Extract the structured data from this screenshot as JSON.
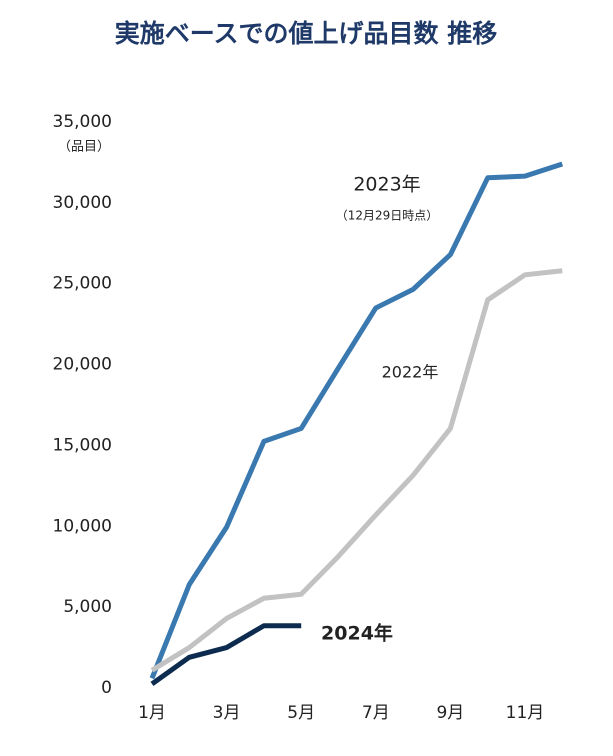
{
  "chart_data": {
    "type": "line",
    "title": "実施ベースでの値上げ品目数 推移",
    "y_label": "（品目）",
    "categories": [
      "1月",
      null,
      "3月",
      null,
      "5月",
      null,
      "7月",
      null,
      "9月",
      null,
      "11月",
      null
    ],
    "series": [
      {
        "name": "2023年",
        "note": "（12月29日時点）",
        "color": "#3a78b0",
        "values": [
          600,
          6400,
          9950,
          15250,
          16050,
          19800,
          23500,
          24650,
          26800,
          31550,
          31650,
          32400
        ]
      },
      {
        "name": "2022年",
        "color": "#c2c2c2",
        "values": [
          1100,
          2500,
          4300,
          5550,
          5800,
          8150,
          10700,
          13150,
          16050,
          24000,
          25550,
          25800
        ]
      },
      {
        "name": "2024年",
        "color": "#0d2b4e",
        "values": [
          250,
          1900,
          2500,
          3850,
          3850,
          null,
          null,
          null,
          null,
          null,
          null,
          null
        ]
      }
    ],
    "ylim": [
      0,
      35000
    ],
    "yticks": [
      0,
      {
        "value": 5000,
        "label": "5,000"
      },
      {
        "value": 10000,
        "label": "10,000"
      },
      {
        "value": 15000,
        "label": "15,000"
      },
      {
        "value": 20000,
        "label": "20,000"
      },
      {
        "value": 25000,
        "label": "25,000"
      },
      {
        "value": 30000,
        "label": "30,000"
      },
      {
        "value": 35000,
        "label": "35,000"
      }
    ],
    "grid": false
  }
}
